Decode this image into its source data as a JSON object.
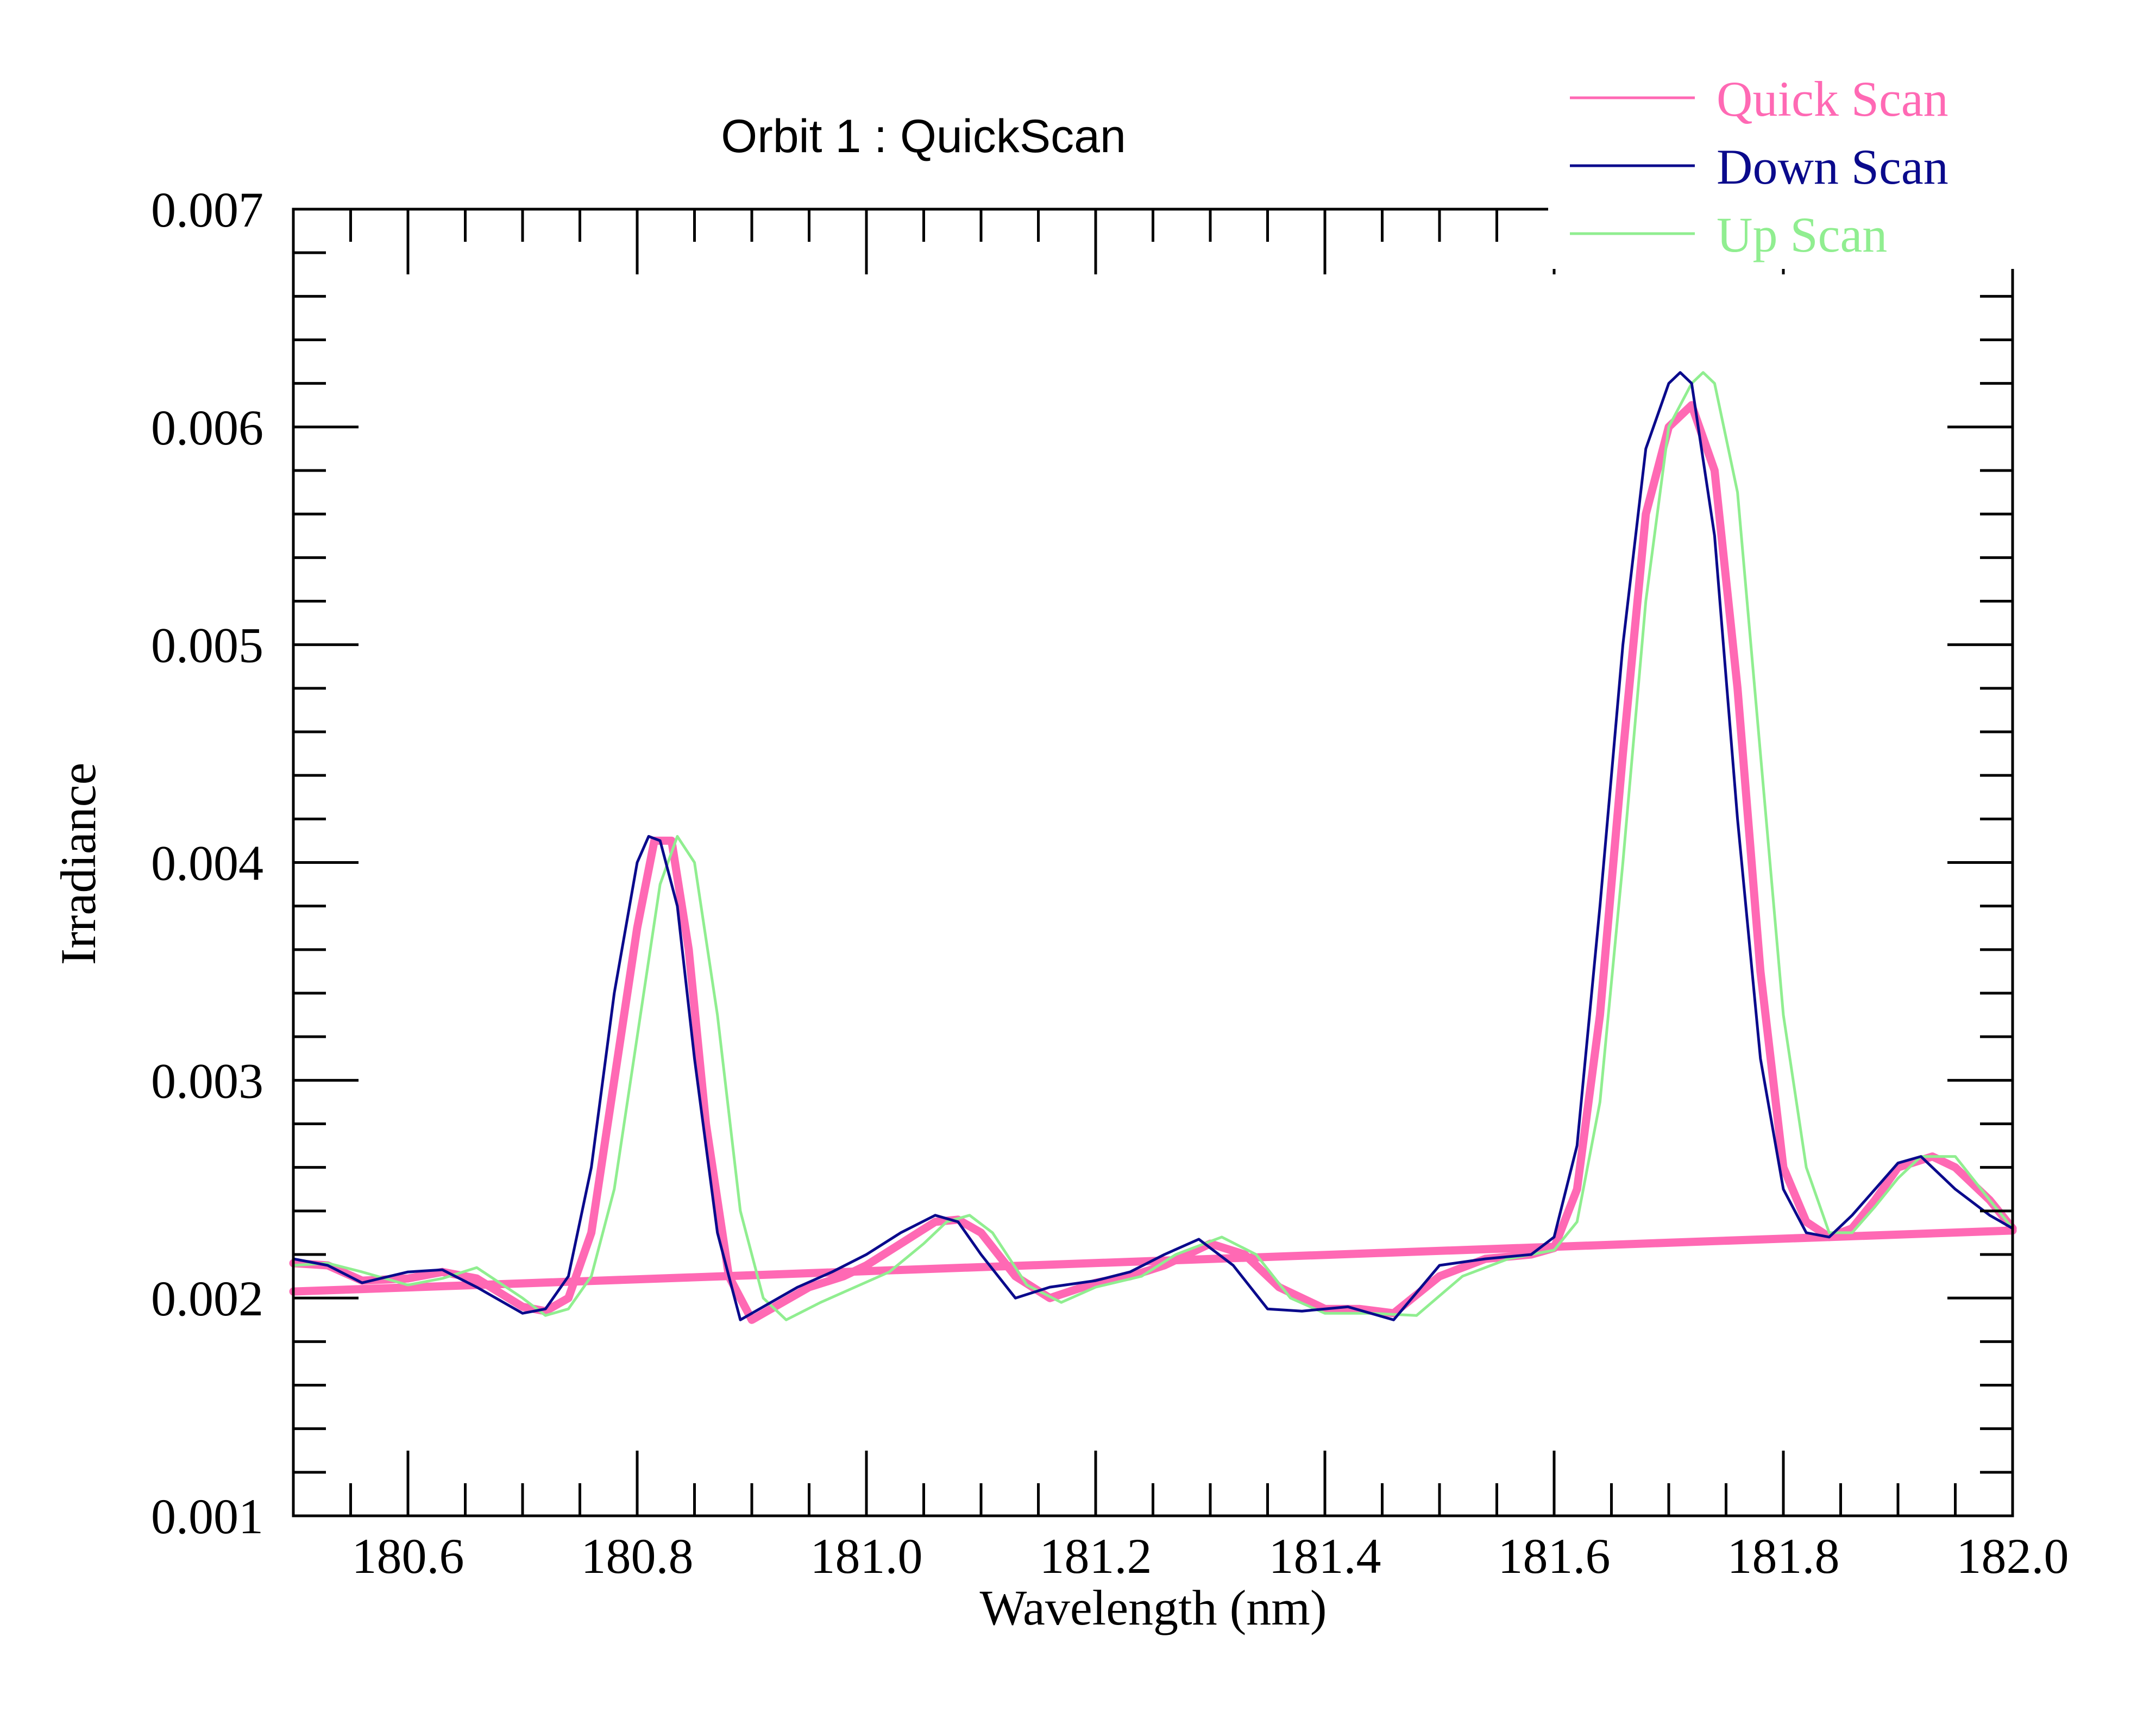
{
  "chart_data": {
    "type": "line",
    "title": "Orbit 1 : QuickScan",
    "xlabel": "Wavelength (nm)",
    "ylabel": "Irradiance",
    "xlim": [
      180.5,
      182.0
    ],
    "ylim": [
      0.001,
      0.007
    ],
    "xticks": [
      180.6,
      180.8,
      181.0,
      181.2,
      181.4,
      181.6,
      181.8,
      182.0
    ],
    "xtick_labels": [
      "180.6",
      "180.8",
      "181.0",
      "181.2",
      "181.4",
      "181.6",
      "181.8",
      "182.0"
    ],
    "yticks": [
      0.001,
      0.002,
      0.003,
      0.004,
      0.005,
      0.006,
      0.007
    ],
    "ytick_labels": [
      "0.001",
      "0.002",
      "0.003",
      "0.004",
      "0.005",
      "0.006",
      "0.007"
    ],
    "grid": false,
    "legend_position": "top-right",
    "series": [
      {
        "name": "Quick Scan",
        "color": "#ff69b4",
        "style": "thick",
        "x": [
          180.5,
          180.53,
          180.56,
          180.6,
          180.63,
          180.66,
          180.7,
          180.72,
          180.74,
          180.76,
          180.78,
          180.8,
          180.815,
          180.83,
          180.845,
          180.86,
          180.88,
          180.9,
          180.92,
          180.95,
          180.98,
          181.0,
          181.03,
          181.06,
          181.08,
          181.1,
          181.13,
          181.16,
          181.2,
          181.23,
          181.26,
          181.3,
          181.33,
          181.36,
          181.4,
          181.43,
          181.46,
          181.5,
          181.54,
          181.58,
          181.6,
          181.62,
          181.64,
          181.66,
          181.68,
          181.7,
          181.72,
          181.74,
          181.76,
          181.78,
          181.8,
          181.82,
          181.84,
          181.86,
          181.88,
          181.9,
          181.93,
          181.95,
          181.98,
          182.0
        ],
        "y": [
          0.00216,
          0.00215,
          0.00208,
          0.00209,
          0.00212,
          0.00209,
          0.00196,
          0.00194,
          0.002,
          0.0023,
          0.003,
          0.0037,
          0.0041,
          0.0041,
          0.0036,
          0.0028,
          0.0021,
          0.0019,
          0.00196,
          0.00205,
          0.0021,
          0.00215,
          0.00225,
          0.00235,
          0.00236,
          0.0023,
          0.0021,
          0.002,
          0.00207,
          0.0021,
          0.00215,
          0.00225,
          0.0022,
          0.00205,
          0.00195,
          0.00195,
          0.00193,
          0.0021,
          0.00218,
          0.0022,
          0.00223,
          0.0025,
          0.0033,
          0.0045,
          0.0056,
          0.006,
          0.0061,
          0.0058,
          0.0048,
          0.0035,
          0.0026,
          0.00235,
          0.00228,
          0.00232,
          0.00245,
          0.0026,
          0.00265,
          0.0026,
          0.00245,
          0.00232
        ]
      },
      {
        "name": "Down Scan",
        "color": "#0a0a8c",
        "style": "thin",
        "x": [
          180.5,
          180.53,
          180.56,
          180.6,
          180.63,
          180.66,
          180.7,
          180.72,
          180.74,
          180.76,
          180.78,
          180.8,
          180.81,
          180.82,
          180.835,
          180.85,
          180.87,
          180.89,
          180.91,
          180.94,
          180.97,
          181.0,
          181.03,
          181.06,
          181.08,
          181.1,
          181.13,
          181.16,
          181.2,
          181.23,
          181.26,
          181.29,
          181.32,
          181.35,
          181.38,
          181.42,
          181.46,
          181.5,
          181.54,
          181.58,
          181.6,
          181.62,
          181.64,
          181.66,
          181.68,
          181.7,
          181.71,
          181.72,
          181.74,
          181.76,
          181.78,
          181.8,
          181.82,
          181.84,
          181.86,
          181.88,
          181.9,
          181.92,
          181.95,
          181.98,
          182.0
        ],
        "y": [
          0.00218,
          0.00215,
          0.00207,
          0.00212,
          0.00213,
          0.00205,
          0.00193,
          0.00195,
          0.0021,
          0.0026,
          0.0034,
          0.004,
          0.00412,
          0.0041,
          0.0038,
          0.0031,
          0.0023,
          0.0019,
          0.00196,
          0.00205,
          0.00212,
          0.0022,
          0.0023,
          0.00238,
          0.00235,
          0.0022,
          0.002,
          0.00205,
          0.00208,
          0.00212,
          0.0022,
          0.00227,
          0.00215,
          0.00195,
          0.00194,
          0.00196,
          0.0019,
          0.00215,
          0.00218,
          0.0022,
          0.00228,
          0.0027,
          0.0038,
          0.005,
          0.0059,
          0.0062,
          0.00625,
          0.0062,
          0.0055,
          0.0042,
          0.0031,
          0.0025,
          0.0023,
          0.00228,
          0.00238,
          0.0025,
          0.00262,
          0.00265,
          0.0025,
          0.00238,
          0.00232
        ]
      },
      {
        "name": "Up Scan",
        "color": "#90ee90",
        "style": "thin",
        "x": [
          180.5,
          180.53,
          180.56,
          180.6,
          180.63,
          180.66,
          180.7,
          180.72,
          180.74,
          180.76,
          180.78,
          180.8,
          180.82,
          180.835,
          180.85,
          180.87,
          180.89,
          180.91,
          180.93,
          180.96,
          180.99,
          181.02,
          181.05,
          181.07,
          181.09,
          181.11,
          181.14,
          181.17,
          181.2,
          181.24,
          181.27,
          181.31,
          181.34,
          181.37,
          181.4,
          181.44,
          181.48,
          181.52,
          181.56,
          181.6,
          181.62,
          181.64,
          181.66,
          181.68,
          181.7,
          181.72,
          181.73,
          181.74,
          181.76,
          181.78,
          181.8,
          181.82,
          181.84,
          181.86,
          181.88,
          181.9,
          181.92,
          181.95,
          181.98,
          182.0
        ],
        "y": [
          0.00215,
          0.00216,
          0.00212,
          0.00206,
          0.00209,
          0.00214,
          0.002,
          0.00192,
          0.00195,
          0.0021,
          0.0025,
          0.0032,
          0.0039,
          0.00412,
          0.004,
          0.0033,
          0.0024,
          0.002,
          0.0019,
          0.00198,
          0.00205,
          0.00212,
          0.00225,
          0.00235,
          0.00238,
          0.0023,
          0.00206,
          0.00198,
          0.00205,
          0.0021,
          0.0022,
          0.00228,
          0.0022,
          0.002,
          0.00193,
          0.00193,
          0.00192,
          0.0021,
          0.00218,
          0.00222,
          0.00235,
          0.0029,
          0.004,
          0.0052,
          0.006,
          0.0062,
          0.00625,
          0.0062,
          0.0057,
          0.0045,
          0.0033,
          0.0026,
          0.0023,
          0.0023,
          0.00242,
          0.00255,
          0.00265,
          0.00265,
          0.00245,
          0.00232
        ]
      },
      {
        "name": "",
        "color": "#ff69b4",
        "style": "thick",
        "x": [
          180.5,
          182.0
        ],
        "y": [
          0.00203,
          0.00231
        ]
      }
    ]
  }
}
